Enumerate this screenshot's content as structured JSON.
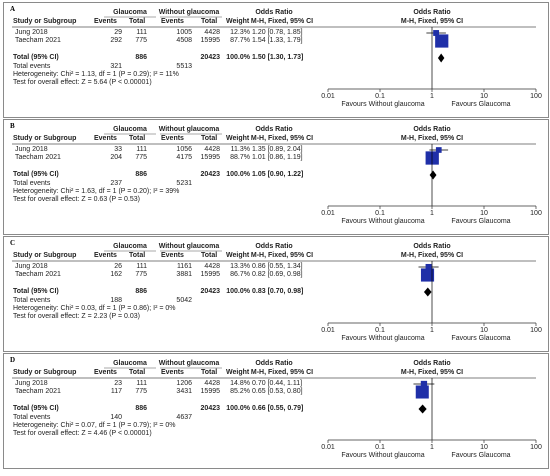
{
  "header": {
    "group_exp": "Glaucoma",
    "group_ctl": "Without glaucoma",
    "col_study": "Study or Subgroup",
    "col_events": "Events",
    "col_total": "Total",
    "col_weight": "Weight",
    "col_or": "Odds Ratio",
    "col_or_method": "M-H, Fixed, 95% CI",
    "col_plot_title": "Odds Ratio",
    "col_plot_method": "M-H, Fixed, 95% CI",
    "total_label": "Total (95% CI)",
    "total_events_label": "Total events"
  },
  "axis_ticks": [
    "0.01",
    "0.1",
    "1",
    "10",
    "100"
  ],
  "chart_data": [
    {
      "type": "forest",
      "panel": "A",
      "scale": "log",
      "xlim": [
        0.01,
        100
      ],
      "studies": [
        {
          "name": "Jung 2018",
          "exp_events": "29",
          "exp_total": "111",
          "ctl_events": "1005",
          "ctl_total": "4428",
          "weight": "12.3%",
          "or_text": "1.20 [0.78, 1.85]",
          "or": 1.2,
          "lo": 0.78,
          "hi": 1.85,
          "w": 12.3
        },
        {
          "name": "Taecham 2021",
          "exp_events": "292",
          "exp_total": "775",
          "ctl_events": "4508",
          "ctl_total": "15995",
          "weight": "87.7%",
          "or_text": "1.54 [1.33, 1.79]",
          "or": 1.54,
          "lo": 1.33,
          "hi": 1.79,
          "w": 87.7
        }
      ],
      "total": {
        "exp_total": "886",
        "ctl_total": "20423",
        "weight": "100.0%",
        "or_text": "1.50 [1.30, 1.73]",
        "or": 1.5,
        "lo": 1.3,
        "hi": 1.73
      },
      "total_events": {
        "exp": "321",
        "ctl": "5513"
      },
      "heterogeneity": "Heterogeneity: Chi² = 1.13, df = 1 (P = 0.29); I² = 11%",
      "overall_test": "Test for overall effect: Z = 5.64 (P < 0.00001)",
      "favours_left": "Favours Without glaucoma",
      "favours_right": "Favours Glaucoma"
    },
    {
      "type": "forest",
      "panel": "B",
      "scale": "log",
      "xlim": [
        0.01,
        100
      ],
      "studies": [
        {
          "name": "Jung 2018",
          "exp_events": "33",
          "exp_total": "111",
          "ctl_events": "1056",
          "ctl_total": "4428",
          "weight": "11.3%",
          "or_text": "1.35 [0.89, 2.04]",
          "or": 1.35,
          "lo": 0.89,
          "hi": 2.04,
          "w": 11.3
        },
        {
          "name": "Taecham 2021",
          "exp_events": "204",
          "exp_total": "775",
          "ctl_events": "4175",
          "ctl_total": "15995",
          "weight": "88.7%",
          "or_text": "1.01 [0.86, 1.19]",
          "or": 1.01,
          "lo": 0.86,
          "hi": 1.19,
          "w": 88.7
        }
      ],
      "total": {
        "exp_total": "886",
        "ctl_total": "20423",
        "weight": "100.0%",
        "or_text": "1.05 [0.90, 1.22]",
        "or": 1.05,
        "lo": 0.9,
        "hi": 1.22
      },
      "total_events": {
        "exp": "237",
        "ctl": "5231"
      },
      "heterogeneity": "Heterogeneity: Chi² = 1.63, df = 1 (P = 0.20); I² = 39%",
      "overall_test": "Test for overall effect: Z = 0.63 (P = 0.53)",
      "favours_left": "Favours Without glaucoma",
      "favours_right": "Favours Glaucoma"
    },
    {
      "type": "forest",
      "panel": "C",
      "scale": "log",
      "xlim": [
        0.01,
        100
      ],
      "studies": [
        {
          "name": "Jung 2018",
          "exp_events": "26",
          "exp_total": "111",
          "ctl_events": "1161",
          "ctl_total": "4428",
          "weight": "13.3%",
          "or_text": "0.86 [0.55, 1.34]",
          "or": 0.86,
          "lo": 0.55,
          "hi": 1.34,
          "w": 13.3
        },
        {
          "name": "Taecham 2021",
          "exp_events": "162",
          "exp_total": "775",
          "ctl_events": "3881",
          "ctl_total": "15995",
          "weight": "86.7%",
          "or_text": "0.82 [0.69, 0.98]",
          "or": 0.82,
          "lo": 0.69,
          "hi": 0.98,
          "w": 86.7
        }
      ],
      "total": {
        "exp_total": "886",
        "ctl_total": "20423",
        "weight": "100.0%",
        "or_text": "0.83 [0.70, 0.98]",
        "or": 0.83,
        "lo": 0.7,
        "hi": 0.98
      },
      "total_events": {
        "exp": "188",
        "ctl": "5042"
      },
      "heterogeneity": "Heterogeneity: Chi² = 0.03, df = 1 (P = 0.86); I² = 0%",
      "overall_test": "Test for overall effect: Z = 2.23 (P = 0.03)",
      "favours_left": "Favours Without glaucoma",
      "favours_right": "Favours Glaucoma"
    },
    {
      "type": "forest",
      "panel": "D",
      "scale": "log",
      "xlim": [
        0.01,
        100
      ],
      "studies": [
        {
          "name": "Jung 2018",
          "exp_events": "23",
          "exp_total": "111",
          "ctl_events": "1206",
          "ctl_total": "4428",
          "weight": "14.8%",
          "or_text": "0.70 [0.44, 1.11]",
          "or": 0.7,
          "lo": 0.44,
          "hi": 1.11,
          "w": 14.8
        },
        {
          "name": "Taecham 2021",
          "exp_events": "117",
          "exp_total": "775",
          "ctl_events": "3431",
          "ctl_total": "15995",
          "weight": "85.2%",
          "or_text": "0.65 [0.53, 0.80]",
          "or": 0.65,
          "lo": 0.53,
          "hi": 0.8,
          "w": 85.2
        }
      ],
      "total": {
        "exp_total": "886",
        "ctl_total": "20423",
        "weight": "100.0%",
        "or_text": "0.66 [0.55, 0.79]",
        "or": 0.66,
        "lo": 0.55,
        "hi": 0.79
      },
      "total_events": {
        "exp": "140",
        "ctl": "4637"
      },
      "heterogeneity": "Heterogeneity: Chi² = 0.07, df = 1 (P = 0.79); I² = 0%",
      "overall_test": "Test for overall effect: Z = 4.46 (P < 0.00001)",
      "favours_left": "Favours Without glaucoma",
      "favours_right": "Favours Glaucoma"
    }
  ],
  "colors": {
    "square": "#1f2fa8",
    "diamond": "#000000",
    "line": "#000000",
    "axis": "#333333",
    "border": "#8a8a8a"
  }
}
